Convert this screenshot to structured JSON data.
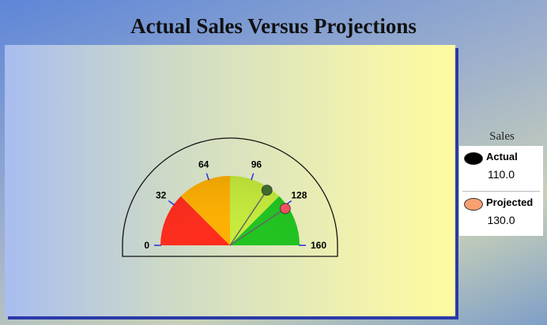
{
  "chart_data": {
    "type": "gauge",
    "title": "Actual Sales Versus Projections",
    "min": 0,
    "max": 160,
    "tick_labels": [
      "0",
      "32",
      "64",
      "96",
      "128",
      "160"
    ],
    "ticks": [
      0,
      32,
      64,
      96,
      128,
      160
    ],
    "color_bands": [
      {
        "from": 0,
        "to": 40,
        "color": "#ff2a1a"
      },
      {
        "from": 40,
        "to": 80,
        "color": "#ffb000"
      },
      {
        "from": 80,
        "to": 120,
        "color": "#c6ec3a"
      },
      {
        "from": 120,
        "to": 160,
        "color": "#1ec41e"
      }
    ],
    "legend_title": "Sales",
    "series": [
      {
        "name": "Actual",
        "value": 110,
        "value_label": "110.0",
        "color": "#000000",
        "marker_color": "#3f6b2b"
      },
      {
        "name": "Projected",
        "value": 130,
        "value_label": "130.0",
        "color": "#f8a070",
        "marker_color": "#f05060"
      }
    ]
  }
}
